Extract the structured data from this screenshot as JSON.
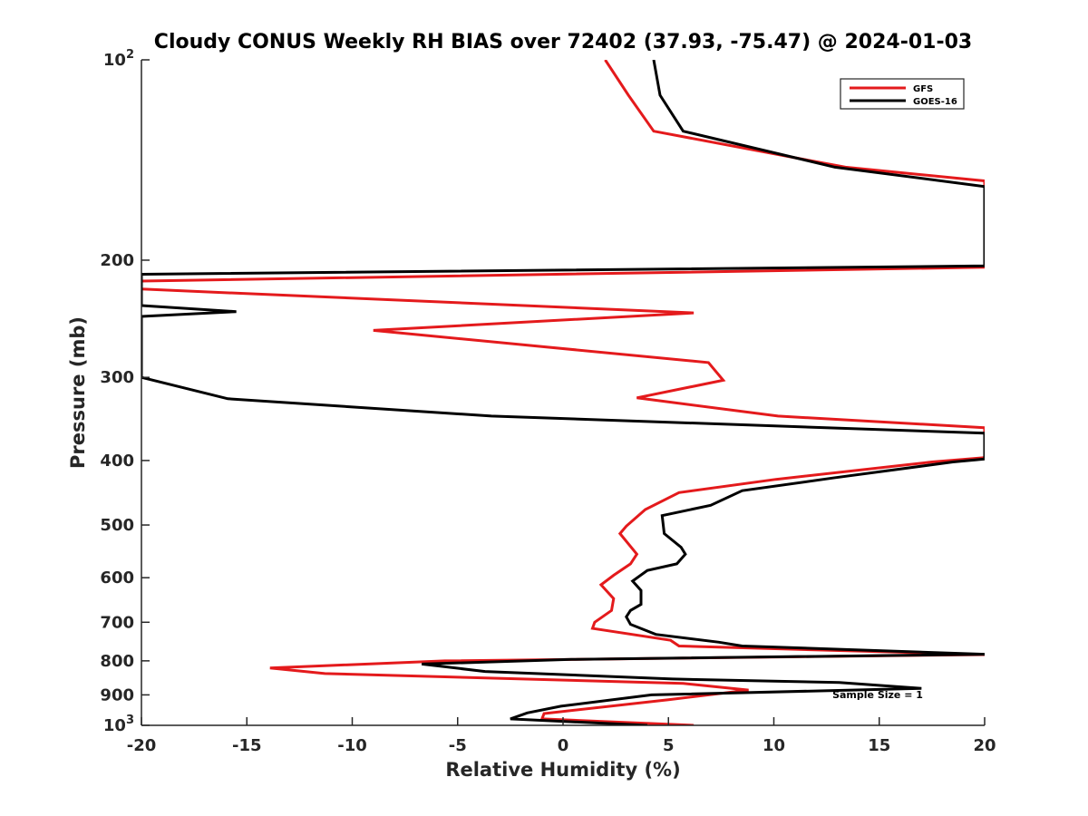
{
  "chart_data": {
    "type": "line",
    "title": "Cloudy CONUS Weekly RH BIAS over 72402 (37.93, -75.47) @ 2024-01-03",
    "xlabel": "Relative Humidity (%)",
    "ylabel": "Pressure (mb)",
    "xlim": [
      -20,
      20
    ],
    "ylim": [
      100,
      1000
    ],
    "yscale": "log",
    "y_reversed": true,
    "x_ticks": [
      -20,
      -15,
      -10,
      -5,
      0,
      5,
      10,
      15,
      20
    ],
    "x_tick_labels": [
      "-20",
      "-15",
      "-10",
      "-5",
      "0",
      "5",
      "10",
      "15",
      "20"
    ],
    "y_ticks": [
      100,
      200,
      300,
      400,
      500,
      600,
      700,
      800,
      900,
      1000
    ],
    "y_tick_labels": [
      {
        "base": "10",
        "exp": "2"
      },
      {
        "text": "200"
      },
      {
        "text": "300"
      },
      {
        "text": "400"
      },
      {
        "text": "500"
      },
      {
        "text": "600"
      },
      {
        "text": "700"
      },
      {
        "text": "800"
      },
      {
        "text": "900"
      },
      {
        "base": "10",
        "exp": "3"
      }
    ],
    "grid": false,
    "legend_position": "top-right",
    "annotation": "Sample Size = 1",
    "series": [
      {
        "name": "GFS",
        "color": "#e41a1c",
        "points": [
          [
            2.0,
            100
          ],
          [
            3.1,
            113
          ],
          [
            4.3,
            128
          ],
          [
            13.4,
            145
          ],
          [
            20,
            152
          ],
          [
            20,
            205
          ],
          [
            -20,
            215
          ],
          [
            -20,
            221
          ],
          [
            6.2,
            240
          ],
          [
            -9.0,
            255
          ],
          [
            6.9,
            285
          ],
          [
            7.6,
            303
          ],
          [
            3.5,
            322
          ],
          [
            10.2,
            343
          ],
          [
            20,
            357
          ],
          [
            20,
            396
          ],
          [
            17.5,
            402
          ],
          [
            10.1,
            427
          ],
          [
            5.5,
            447
          ],
          [
            3.9,
            474
          ],
          [
            3.0,
            502
          ],
          [
            2.7,
            515
          ],
          [
            3.5,
            553
          ],
          [
            3.2,
            572
          ],
          [
            2.4,
            595
          ],
          [
            1.8,
            615
          ],
          [
            2.4,
            645
          ],
          [
            2.3,
            672
          ],
          [
            1.5,
            700
          ],
          [
            1.4,
            715
          ],
          [
            5.1,
            745
          ],
          [
            5.5,
            760
          ],
          [
            20,
            783
          ],
          [
            -5.6,
            800
          ],
          [
            -13.9,
            820
          ],
          [
            -11.3,
            836
          ],
          [
            5.7,
            865
          ],
          [
            8.8,
            885
          ],
          [
            5.0,
            915
          ],
          [
            -0.9,
            960
          ],
          [
            -1.0,
            978
          ],
          [
            6.2,
            1000
          ]
        ]
      },
      {
        "name": "GOES-16",
        "color": "#000000",
        "points": [
          [
            4.3,
            100
          ],
          [
            4.6,
            113
          ],
          [
            5.7,
            128
          ],
          [
            12.9,
            145
          ],
          [
            20,
            155
          ],
          [
            20,
            204
          ],
          [
            -20,
            210
          ],
          [
            -20,
            234
          ],
          [
            -15.5,
            239
          ],
          [
            -20,
            243
          ],
          [
            -20,
            300
          ],
          [
            -15.9,
            323
          ],
          [
            -3.4,
            343
          ],
          [
            20,
            364
          ],
          [
            20,
            398
          ],
          [
            18.5,
            402
          ],
          [
            12.8,
            425
          ],
          [
            8.5,
            444
          ],
          [
            7.0,
            467
          ],
          [
            4.7,
            484
          ],
          [
            4.8,
            515
          ],
          [
            5.6,
            540
          ],
          [
            5.8,
            553
          ],
          [
            5.4,
            572
          ],
          [
            4.0,
            585
          ],
          [
            3.3,
            607
          ],
          [
            3.7,
            627
          ],
          [
            3.7,
            658
          ],
          [
            3.2,
            672
          ],
          [
            3.0,
            687
          ],
          [
            3.2,
            705
          ],
          [
            4.4,
            730
          ],
          [
            7.4,
            750
          ],
          [
            8.5,
            760
          ],
          [
            20,
            782
          ],
          [
            0.4,
            796
          ],
          [
            -6.7,
            809
          ],
          [
            -3.7,
            830
          ],
          [
            5.2,
            852
          ],
          [
            13.1,
            862
          ],
          [
            17.0,
            880
          ],
          [
            4.2,
            900
          ],
          [
            -0.1,
            936
          ],
          [
            -1.7,
            958
          ],
          [
            -2.5,
            978
          ],
          [
            4.0,
            1000
          ]
        ]
      }
    ]
  }
}
